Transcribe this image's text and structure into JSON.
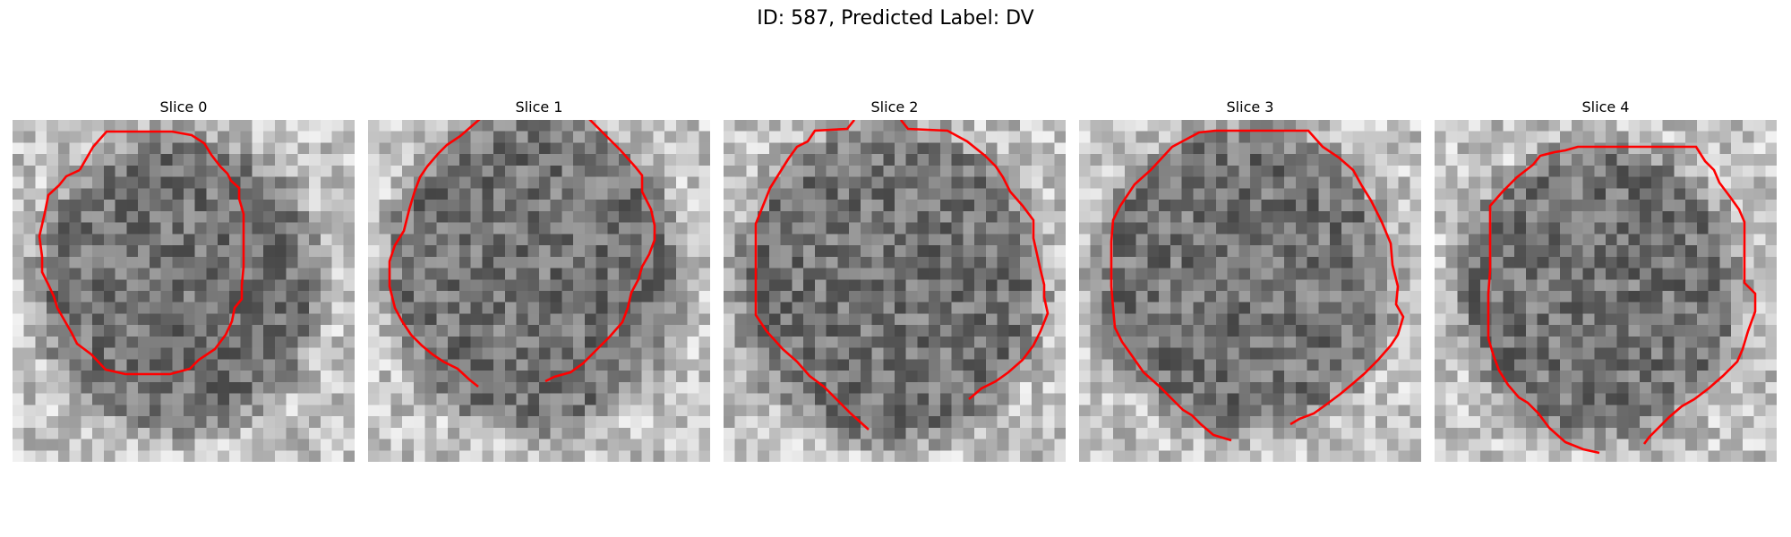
{
  "figure": {
    "title": "ID: 587, Predicted Label: DV"
  },
  "slices": [
    {
      "title": "Slice 0",
      "contour_color": "#ff0000"
    },
    {
      "title": "Slice 1",
      "contour_color": "#ff0000"
    },
    {
      "title": "Slice 2",
      "contour_color": "#ff0000"
    },
    {
      "title": "Slice 3",
      "contour_color": "#ff0000"
    },
    {
      "title": "Slice 4",
      "contour_color": "#ff0000"
    }
  ],
  "colors": {
    "background": "#ffffff",
    "contour": "#ff0000",
    "text": "#000000"
  }
}
